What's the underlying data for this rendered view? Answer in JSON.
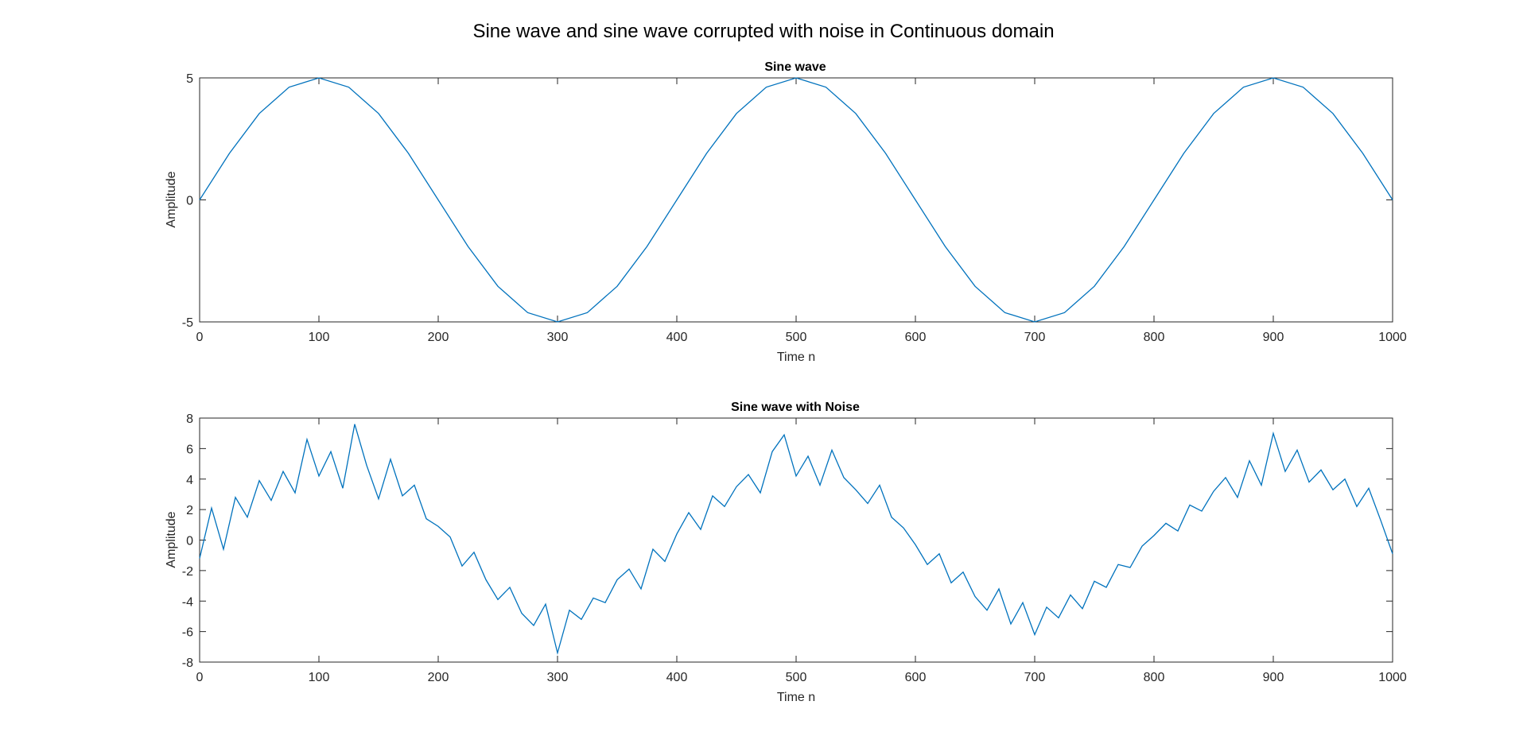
{
  "figure": {
    "title": "Sine wave and sine wave corrupted with noise in Continuous domain"
  },
  "colors": {
    "line": "#0072BD",
    "axes": "#262626",
    "background": "#ffffff"
  },
  "chart_data": [
    {
      "type": "line",
      "title": "Sine wave",
      "xlabel": "Time n",
      "ylabel": "Amplitude",
      "xlim": [
        0,
        1000
      ],
      "ylim": [
        -5,
        5
      ],
      "xticks": [
        0,
        100,
        200,
        300,
        400,
        500,
        600,
        700,
        800,
        900,
        1000
      ],
      "yticks": [
        -5,
        0,
        5
      ],
      "grid": false,
      "legend": "none",
      "series": [
        {
          "x": [
            0,
            25,
            50,
            75,
            100,
            125,
            150,
            175,
            200,
            225,
            250,
            275,
            300,
            325,
            350,
            375,
            400,
            425,
            450,
            475,
            500,
            525,
            550,
            575,
            600,
            625,
            650,
            675,
            700,
            725,
            750,
            775,
            800,
            825,
            850,
            875,
            900,
            925,
            950,
            975,
            1000
          ],
          "y": [
            0,
            1.91,
            3.54,
            4.62,
            5,
            4.62,
            3.54,
            1.91,
            0,
            -1.91,
            -3.54,
            -4.62,
            -5,
            -4.62,
            -3.54,
            -1.91,
            0,
            1.91,
            3.54,
            4.62,
            5,
            4.62,
            3.54,
            1.91,
            0,
            -1.91,
            -3.54,
            -4.62,
            -5,
            -4.62,
            -3.54,
            -1.91,
            0,
            1.91,
            3.54,
            4.62,
            5,
            4.62,
            3.54,
            1.91,
            0
          ]
        }
      ]
    },
    {
      "type": "line",
      "title": "Sine wave with Noise",
      "xlabel": "Time n",
      "ylabel": "Amplitude",
      "xlim": [
        0,
        1000
      ],
      "ylim": [
        -8,
        8
      ],
      "xticks": [
        0,
        100,
        200,
        300,
        400,
        500,
        600,
        700,
        800,
        900,
        1000
      ],
      "yticks": [
        -8,
        -6,
        -4,
        -2,
        0,
        2,
        4,
        6,
        8
      ],
      "grid": false,
      "legend": "none",
      "series": [
        {
          "x": [
            0,
            10,
            20,
            30,
            40,
            50,
            60,
            70,
            80,
            90,
            100,
            110,
            120,
            130,
            140,
            150,
            160,
            170,
            180,
            190,
            200,
            210,
            220,
            230,
            240,
            250,
            260,
            270,
            280,
            290,
            300,
            310,
            320,
            330,
            340,
            350,
            360,
            370,
            380,
            390,
            400,
            410,
            420,
            430,
            440,
            450,
            460,
            470,
            480,
            490,
            500,
            510,
            520,
            530,
            540,
            550,
            560,
            570,
            580,
            590,
            600,
            610,
            620,
            630,
            640,
            650,
            660,
            670,
            680,
            690,
            700,
            710,
            720,
            730,
            740,
            750,
            760,
            770,
            780,
            790,
            800,
            810,
            820,
            830,
            840,
            850,
            860,
            870,
            880,
            890,
            900,
            910,
            920,
            930,
            940,
            950,
            960,
            970,
            980,
            990,
            1000
          ],
          "y": [
            -1.2,
            2.1,
            -0.6,
            2.8,
            1.5,
            3.9,
            2.6,
            4.5,
            3.1,
            6.6,
            4.2,
            5.8,
            3.4,
            7.6,
            4.9,
            2.7,
            5.3,
            2.9,
            3.6,
            1.4,
            0.9,
            0.2,
            -1.7,
            -0.8,
            -2.6,
            -3.9,
            -3.1,
            -4.8,
            -5.6,
            -4.2,
            -7.4,
            -4.6,
            -5.2,
            -3.8,
            -4.1,
            -2.6,
            -1.9,
            -3.2,
            -0.6,
            -1.4,
            0.4,
            1.8,
            0.7,
            2.9,
            2.2,
            3.5,
            4.3,
            3.1,
            5.8,
            6.9,
            4.2,
            5.5,
            3.6,
            5.9,
            4.1,
            3.3,
            2.4,
            3.6,
            1.5,
            0.8,
            -0.3,
            -1.6,
            -0.9,
            -2.8,
            -2.1,
            -3.7,
            -4.6,
            -3.2,
            -5.5,
            -4.1,
            -6.2,
            -4.4,
            -5.1,
            -3.6,
            -4.5,
            -2.7,
            -3.1,
            -1.6,
            -1.8,
            -0.4,
            0.3,
            1.1,
            0.6,
            2.3,
            1.9,
            3.2,
            4.1,
            2.8,
            5.2,
            3.6,
            7.0,
            4.5,
            5.9,
            3.8,
            4.6,
            3.3,
            4.0,
            2.2,
            3.4,
            1.3,
            -0.9
          ]
        }
      ]
    }
  ]
}
